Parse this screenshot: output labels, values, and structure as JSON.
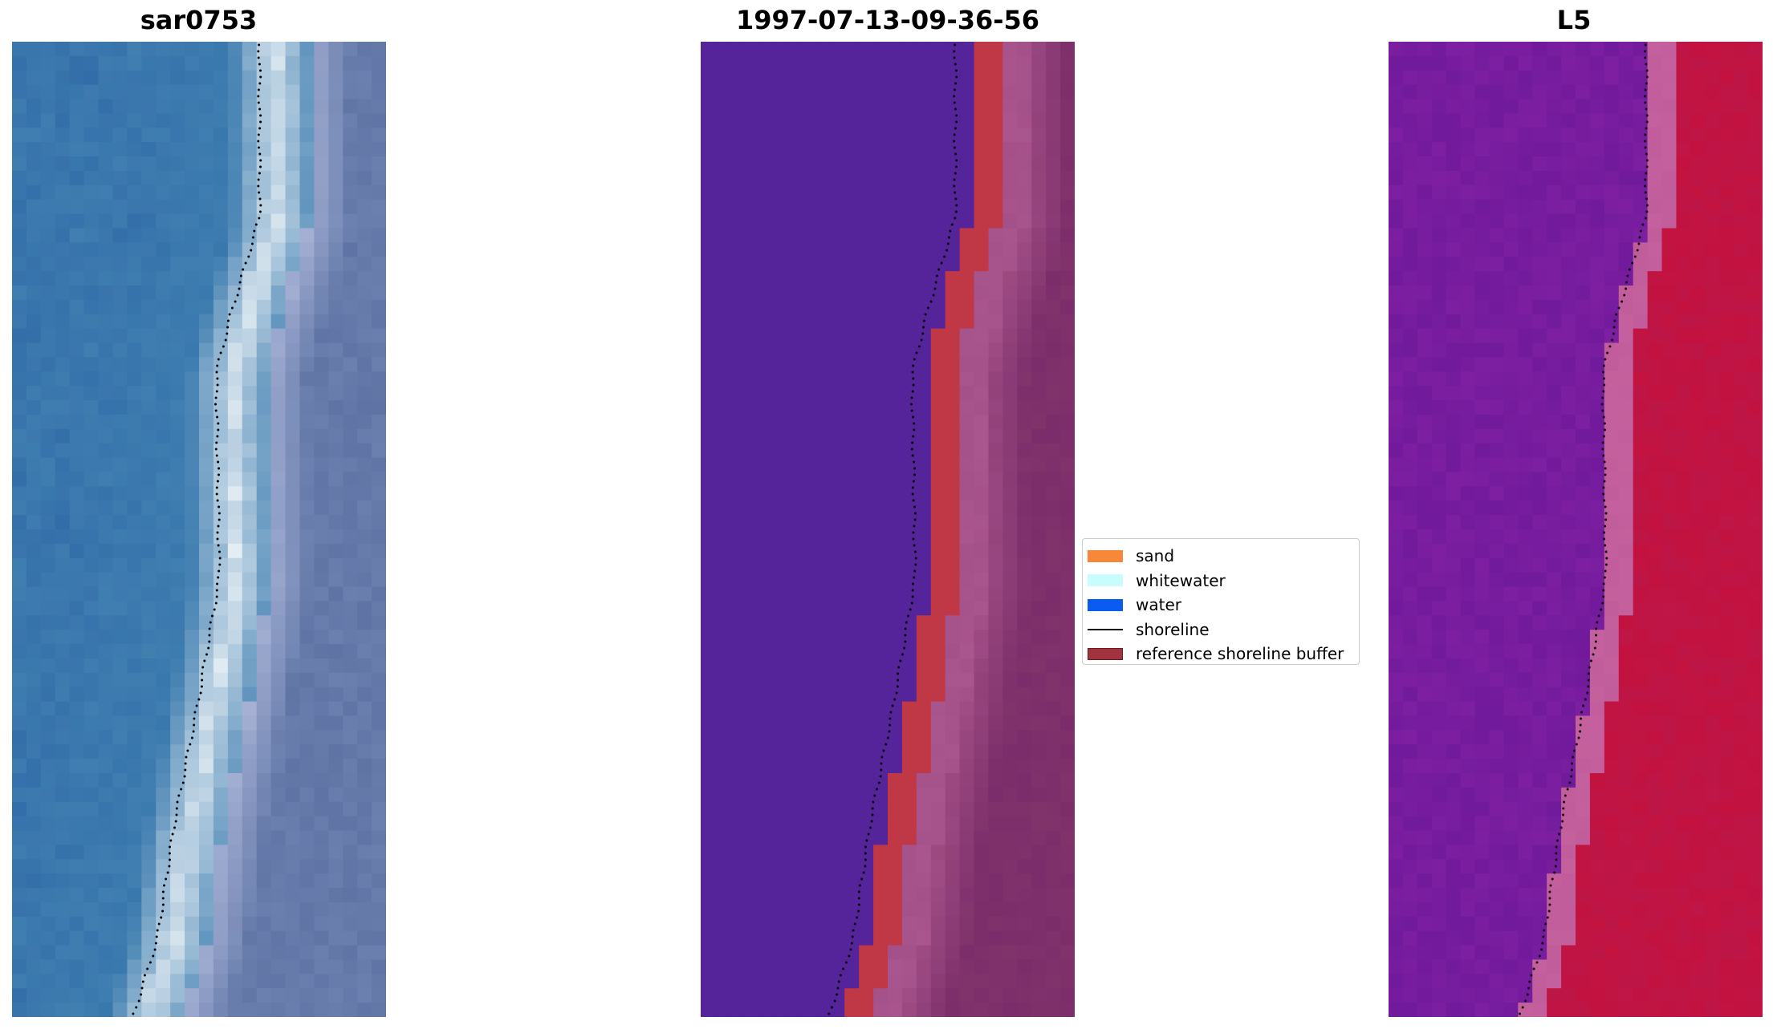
{
  "panels": [
    {
      "title": "sar0753"
    },
    {
      "title": "1997-07-13-09-36-56"
    },
    {
      "title": "L5"
    }
  ],
  "legend": {
    "items": [
      {
        "label": "sand",
        "color": "#f7883a",
        "kind": "patch"
      },
      {
        "label": "whitewater",
        "color": "#c9fdfd",
        "kind": "patch"
      },
      {
        "label": "water",
        "color": "#0a5cf0",
        "kind": "patch"
      },
      {
        "label": "shoreline",
        "color": "#000000",
        "kind": "line"
      },
      {
        "label": "reference shoreline buffer",
        "color": "#a0333d",
        "kind": "patch"
      }
    ]
  },
  "colors": {
    "rgb_water": "#3a7aae",
    "rgb_surf": "#e8f0f5",
    "rgb_land": "#5f74a4",
    "classified_water": "#55239a",
    "classified_land": "#7a2d6a",
    "classified_buffer": "#c03846",
    "classified_buffer_edge": "#a45089",
    "mndwi_water": "#7e1fa1",
    "mndwi_land": "#c3123f",
    "mndwi_edge": "#c25c9c"
  }
}
